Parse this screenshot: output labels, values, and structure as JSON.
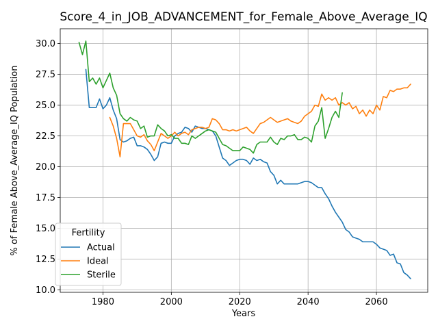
{
  "chart_data": {
    "type": "line",
    "title": "Score_4_in_JOB_ADVANCEMENT_for_Female_Above_Average_IQ",
    "xlabel": "Years",
    "ylabel": "% of Female Above_Average_IQ Population",
    "xlim": [
      1967.5,
      2075
    ],
    "ylim": [
      9.8,
      31.2
    ],
    "xticks": [
      1980,
      2000,
      2020,
      2040,
      2060
    ],
    "xtick_labels": [
      "1980",
      "2000",
      "2020",
      "2040",
      "2060"
    ],
    "yticks": [
      10.0,
      12.5,
      15.0,
      17.5,
      20.0,
      22.5,
      25.0,
      27.5,
      30.0
    ],
    "ytick_labels": [
      "10.0",
      "12.5",
      "15.0",
      "17.5",
      "20.0",
      "22.5",
      "25.0",
      "27.5",
      "30.0"
    ],
    "grid": true,
    "legend": {
      "title": "Fertility",
      "placement": "lower-left"
    },
    "series": [
      {
        "name": "Actual",
        "color": "#1f77b4",
        "x": [
          1975,
          1976,
          1977,
          1978,
          1979,
          1980,
          1981,
          1982,
          1983,
          1984,
          1985,
          1986,
          1987,
          1988,
          1989,
          1990,
          1991,
          1992,
          1993,
          1994,
          1995,
          1996,
          1997,
          1998,
          1999,
          2000,
          2001,
          2002,
          2003,
          2004,
          2005,
          2006,
          2007,
          2008,
          2009,
          2010,
          2011,
          2012,
          2013,
          2014,
          2015,
          2016,
          2017,
          2018,
          2019,
          2020,
          2021,
          2022,
          2023,
          2024,
          2025,
          2026,
          2027,
          2028,
          2029,
          2030,
          2031,
          2032,
          2033,
          2034,
          2035,
          2036,
          2037,
          2038,
          2039,
          2040,
          2041,
          2042,
          2043,
          2044,
          2045,
          2046,
          2047,
          2048,
          2049,
          2050,
          2051,
          2052,
          2053,
          2054,
          2055,
          2056,
          2057,
          2058,
          2059,
          2060,
          2061,
          2062,
          2063,
          2064,
          2065,
          2066,
          2067,
          2068,
          2069,
          2070
        ],
        "values": [
          27.9,
          24.8,
          24.8,
          24.8,
          25.5,
          24.7,
          25.0,
          25.6,
          24.6,
          23.9,
          22.2,
          22.0,
          22.1,
          22.3,
          22.4,
          21.7,
          21.7,
          21.6,
          21.4,
          21.0,
          20.5,
          20.8,
          21.9,
          22.0,
          21.9,
          21.9,
          22.5,
          22.7,
          22.8,
          23.2,
          23.1,
          22.8,
          23.3,
          23.2,
          23.1,
          23.1,
          23.0,
          22.9,
          22.5,
          21.6,
          20.7,
          20.5,
          20.1,
          20.3,
          20.5,
          20.6,
          20.6,
          20.5,
          20.2,
          20.7,
          20.5,
          20.6,
          20.4,
          20.3,
          19.6,
          19.3,
          18.6,
          18.9,
          18.6,
          18.6,
          18.6,
          18.6,
          18.6,
          18.7,
          18.8,
          18.8,
          18.7,
          18.5,
          18.3,
          18.3,
          17.8,
          17.4,
          16.8,
          16.3,
          15.9,
          15.5,
          14.9,
          14.7,
          14.3,
          14.2,
          14.1,
          13.9,
          13.9,
          13.9,
          13.9,
          13.7,
          13.4,
          13.3,
          13.2,
          12.8,
          12.9,
          12.2,
          12.1,
          11.4,
          11.2,
          10.9
        ]
      },
      {
        "name": "Ideal",
        "color": "#ff7f0e",
        "x": [
          1982,
          1983,
          1984,
          1985,
          1986,
          1987,
          1988,
          1989,
          1990,
          1991,
          1992,
          1993,
          1994,
          1995,
          1996,
          1997,
          1998,
          1999,
          2000,
          2001,
          2002,
          2003,
          2004,
          2005,
          2006,
          2007,
          2008,
          2009,
          2010,
          2011,
          2012,
          2013,
          2014,
          2015,
          2016,
          2017,
          2018,
          2019,
          2020,
          2021,
          2022,
          2023,
          2024,
          2025,
          2026,
          2027,
          2028,
          2029,
          2030,
          2031,
          2032,
          2033,
          2034,
          2035,
          2036,
          2037,
          2038,
          2039,
          2040,
          2041,
          2042,
          2043,
          2044,
          2045,
          2046,
          2047,
          2048,
          2049,
          2050,
          2051,
          2052,
          2053,
          2054,
          2055,
          2056,
          2057,
          2058,
          2059,
          2060,
          2061,
          2062,
          2063,
          2064,
          2065,
          2066,
          2067,
          2068,
          2069,
          2070
        ],
        "values": [
          24.0,
          23.3,
          22.3,
          20.8,
          23.5,
          23.5,
          23.5,
          23.0,
          22.5,
          22.4,
          22.6,
          22.1,
          21.8,
          21.3,
          22.0,
          22.7,
          22.5,
          22.3,
          22.5,
          22.8,
          22.5,
          22.7,
          22.8,
          22.6,
          23.0,
          23.1,
          23.2,
          23.2,
          23.1,
          23.2,
          23.9,
          23.8,
          23.5,
          23.0,
          23.0,
          22.9,
          23.0,
          22.9,
          23.0,
          23.1,
          23.2,
          22.9,
          22.7,
          23.1,
          23.5,
          23.6,
          23.8,
          24.0,
          23.8,
          23.6,
          23.7,
          23.8,
          23.9,
          23.7,
          23.6,
          23.5,
          23.7,
          24.1,
          24.3,
          24.5,
          25.0,
          24.9,
          25.9,
          25.4,
          25.6,
          25.4,
          25.6,
          25.0,
          25.2,
          25.0,
          25.2,
          24.7,
          24.9,
          24.3,
          24.6,
          24.1,
          24.6,
          24.3,
          25.0,
          24.6,
          25.7,
          25.6,
          26.2,
          26.1,
          26.3,
          26.3,
          26.4,
          26.4,
          26.7
        ]
      },
      {
        "name": "Sterile",
        "color": "#2ca02c",
        "x": [
          1973,
          1974,
          1975,
          1976,
          1977,
          1978,
          1979,
          1980,
          1981,
          1982,
          1983,
          1984,
          1985,
          1986,
          1987,
          1988,
          1989,
          1990,
          1991,
          1992,
          1993,
          1994,
          1995,
          1996,
          1997,
          1998,
          1999,
          2000,
          2001,
          2002,
          2003,
          2004,
          2005,
          2006,
          2007,
          2008,
          2009,
          2010,
          2011,
          2012,
          2013,
          2014,
          2015,
          2016,
          2017,
          2018,
          2019,
          2020,
          2021,
          2022,
          2023,
          2024,
          2025,
          2026,
          2027,
          2028,
          2029,
          2030,
          2031,
          2032,
          2033,
          2034,
          2035,
          2036,
          2037,
          2038,
          2039,
          2040,
          2041,
          2042,
          2043,
          2044,
          2045,
          2046,
          2047,
          2048,
          2049,
          2050
        ],
        "values": [
          30.1,
          29.1,
          30.2,
          26.9,
          27.2,
          26.7,
          27.2,
          26.4,
          27.0,
          27.6,
          26.4,
          25.8,
          24.3,
          23.9,
          23.7,
          24.0,
          23.8,
          23.7,
          23.1,
          23.3,
          22.4,
          22.5,
          22.5,
          23.4,
          23.1,
          22.9,
          22.5,
          22.6,
          22.3,
          22.3,
          21.9,
          21.9,
          21.8,
          22.5,
          22.3,
          22.5,
          22.7,
          22.9,
          23.0,
          22.9,
          22.8,
          22.3,
          21.8,
          21.7,
          21.5,
          21.3,
          21.3,
          21.3,
          21.6,
          21.5,
          21.4,
          21.1,
          21.8,
          22.0,
          22.0,
          22.0,
          22.4,
          22.0,
          21.8,
          22.3,
          22.2,
          22.5,
          22.5,
          22.6,
          22.2,
          22.2,
          22.4,
          22.3,
          22.0,
          23.3,
          23.7,
          24.8,
          22.3,
          23.1,
          24.0,
          24.5,
          24.0,
          26.0
        ]
      }
    ]
  }
}
